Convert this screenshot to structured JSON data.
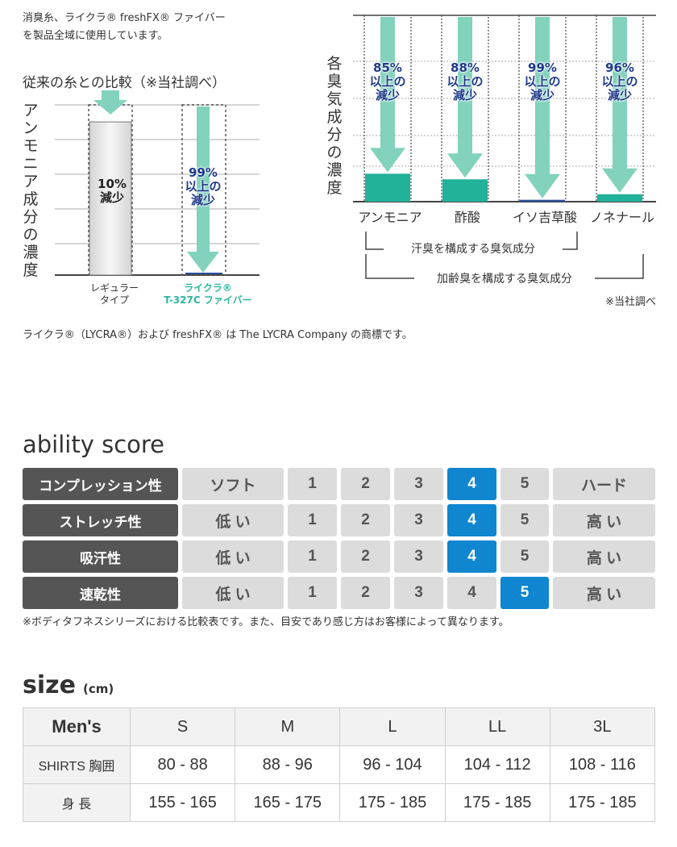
{
  "intro": {
    "line1": "消臭糸、ライクラ® freshFX® ファイバー",
    "line2": "を製品全域に使用しています。"
  },
  "comparison": {
    "title": "従来の糸との比較（※当社調べ）",
    "ylabel": "アンモニア成分の濃度",
    "bars": [
      {
        "label_line1": "レギュラー",
        "label_line2": "タイプ",
        "reduction_line1": "10%",
        "reduction_line2": "減少",
        "remaining_fraction": 0.9
      },
      {
        "label_line1": "ライクラ®",
        "label_line2": "T-327C ファイバー",
        "reduction_line1": "99%",
        "reduction_line2": "以上の",
        "reduction_line3": "減少",
        "remaining_fraction": 0.01
      }
    ]
  },
  "odor": {
    "ylabel": "各臭気成分の濃度",
    "items": [
      {
        "name": "アンモニア",
        "pct": "85%",
        "l2": "以上の",
        "l3": "減少",
        "remaining_fraction": 0.15
      },
      {
        "name": "酢酸",
        "pct": "88%",
        "l2": "以上の",
        "l3": "減少",
        "remaining_fraction": 0.12
      },
      {
        "name": "イソ吉草酸",
        "pct": "99%",
        "l2": "以上の",
        "l3": "減少",
        "remaining_fraction": 0.01
      },
      {
        "name": "ノネナール",
        "pct": "96%",
        "l2": "以上の",
        "l3": "減少",
        "remaining_fraction": 0.04
      }
    ],
    "bracket1": "汗臭を構成する臭気成分",
    "bracket2": "加齢臭を構成する臭気成分",
    "source": "※当社調べ"
  },
  "trademark": "ライクラ®（LYCRA®）および freshFX® は The LYCRA Company の商標です。",
  "ability": {
    "title": "ability score",
    "rows": [
      {
        "label": "コンプレッション性",
        "low": "ソフト",
        "high": "ハード",
        "scores": [
          "1",
          "2",
          "3",
          "4",
          "5"
        ],
        "selected": 4
      },
      {
        "label": "ストレッチ性",
        "low": "低 い",
        "high": "高 い",
        "scores": [
          "1",
          "2",
          "3",
          "4",
          "5"
        ],
        "selected": 4
      },
      {
        "label": "吸汗性",
        "low": "低 い",
        "high": "高 い",
        "scores": [
          "1",
          "2",
          "3",
          "4",
          "5"
        ],
        "selected": 4
      },
      {
        "label": "速乾性",
        "low": "低 い",
        "high": "高 い",
        "scores": [
          "1",
          "2",
          "3",
          "4",
          "5"
        ],
        "selected": 5
      }
    ],
    "note": "※ボディタフネスシリーズにおける比較表です。また、目安であり感じ方はお客様によって異なります。",
    "colors": {
      "selected": "#0f86cf",
      "label_bg": "#555555",
      "cell_bg": "#dcdcdc"
    }
  },
  "size": {
    "title": "size",
    "unit": "(cm)",
    "header": [
      "Men's",
      "S",
      "M",
      "L",
      "LL",
      "3L"
    ],
    "rows": [
      [
        "SHIRTS 胸囲",
        "80 - 88",
        "88 - 96",
        "96 - 104",
        "104 - 112",
        "108 - 116"
      ],
      [
        "身 長",
        "155 - 165",
        "165 - 175",
        "175 - 185",
        "175 - 185",
        "175 - 185"
      ]
    ]
  }
}
